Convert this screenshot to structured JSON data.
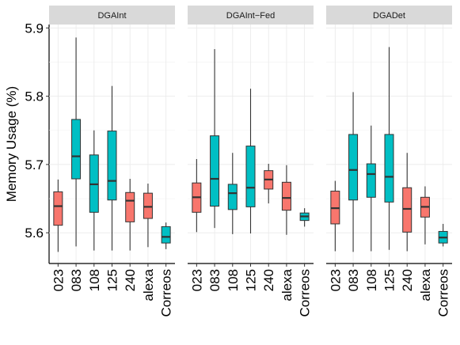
{
  "chart_data": {
    "type": "box",
    "ylabel": "Memory Usage (%)",
    "xlabel": "",
    "ylim": [
      5.555,
      5.905
    ],
    "yticks": [
      5.6,
      5.7,
      5.8,
      5.9
    ],
    "ytick_labels": [
      "5.6",
      "5.7",
      "5.8",
      "5.9"
    ],
    "categories": [
      "023",
      "083",
      "108",
      "125",
      "240",
      "alexa",
      "Correos"
    ],
    "fill_colors": {
      "red": "#F8766D",
      "teal": "#00BFC4"
    },
    "grid": true,
    "legend": "none",
    "panels": [
      {
        "title": "DGAInt",
        "boxes": [
          {
            "category": "023",
            "fill": "red",
            "whisker_low": 5.572,
            "q1": 5.611,
            "median": 5.639,
            "q3": 5.66,
            "whisker_high": 5.678
          },
          {
            "category": "083",
            "fill": "teal",
            "whisker_low": 5.58,
            "q1": 5.679,
            "median": 5.712,
            "q3": 5.766,
            "whisker_high": 5.886
          },
          {
            "category": "108",
            "fill": "teal",
            "whisker_low": 5.574,
            "q1": 5.63,
            "median": 5.671,
            "q3": 5.714,
            "whisker_high": 5.75
          },
          {
            "category": "125",
            "fill": "teal",
            "whisker_low": 5.574,
            "q1": 5.648,
            "median": 5.676,
            "q3": 5.749,
            "whisker_high": 5.815
          },
          {
            "category": "240",
            "fill": "red",
            "whisker_low": 5.574,
            "q1": 5.616,
            "median": 5.647,
            "q3": 5.659,
            "whisker_high": 5.679
          },
          {
            "category": "alexa",
            "fill": "red",
            "whisker_low": 5.579,
            "q1": 5.621,
            "median": 5.638,
            "q3": 5.658,
            "whisker_high": 5.672
          },
          {
            "category": "Correos",
            "fill": "teal",
            "whisker_low": 5.576,
            "q1": 5.585,
            "median": 5.594,
            "q3": 5.609,
            "whisker_high": 5.615
          }
        ]
      },
      {
        "title": "DGAInt−Fed",
        "boxes": [
          {
            "category": "023",
            "fill": "red",
            "whisker_low": 5.601,
            "q1": 5.63,
            "median": 5.652,
            "q3": 5.673,
            "whisker_high": 5.708
          },
          {
            "category": "083",
            "fill": "teal",
            "whisker_low": 5.607,
            "q1": 5.639,
            "median": 5.679,
            "q3": 5.742,
            "whisker_high": 5.869
          },
          {
            "category": "108",
            "fill": "teal",
            "whisker_low": 5.598,
            "q1": 5.634,
            "median": 5.658,
            "q3": 5.671,
            "whisker_high": 5.717
          },
          {
            "category": "125",
            "fill": "teal",
            "whisker_low": 5.599,
            "q1": 5.638,
            "median": 5.666,
            "q3": 5.727,
            "whisker_high": 5.811
          },
          {
            "category": "240",
            "fill": "red",
            "whisker_low": 5.643,
            "q1": 5.664,
            "median": 5.678,
            "q3": 5.691,
            "whisker_high": 5.701
          },
          {
            "category": "alexa",
            "fill": "red",
            "whisker_low": 5.597,
            "q1": 5.633,
            "median": 5.651,
            "q3": 5.674,
            "whisker_high": 5.699
          },
          {
            "category": "Correos",
            "fill": "teal",
            "whisker_low": 5.609,
            "q1": 5.618,
            "median": 5.624,
            "q3": 5.629,
            "whisker_high": 5.636
          }
        ]
      },
      {
        "title": "DGADet",
        "boxes": [
          {
            "category": "023",
            "fill": "red",
            "whisker_low": 5.573,
            "q1": 5.613,
            "median": 5.636,
            "q3": 5.661,
            "whisker_high": 5.676
          },
          {
            "category": "083",
            "fill": "teal",
            "whisker_low": 5.572,
            "q1": 5.648,
            "median": 5.692,
            "q3": 5.744,
            "whisker_high": 5.806
          },
          {
            "category": "108",
            "fill": "teal",
            "whisker_low": 5.573,
            "q1": 5.652,
            "median": 5.686,
            "q3": 5.701,
            "whisker_high": 5.757
          },
          {
            "category": "125",
            "fill": "teal",
            "whisker_low": 5.575,
            "q1": 5.645,
            "median": 5.682,
            "q3": 5.744,
            "whisker_high": 5.872
          },
          {
            "category": "240",
            "fill": "red",
            "whisker_low": 5.573,
            "q1": 5.601,
            "median": 5.635,
            "q3": 5.666,
            "whisker_high": 5.717
          },
          {
            "category": "alexa",
            "fill": "red",
            "whisker_low": 5.583,
            "q1": 5.623,
            "median": 5.638,
            "q3": 5.652,
            "whisker_high": 5.668
          },
          {
            "category": "Correos",
            "fill": "teal",
            "whisker_low": 5.58,
            "q1": 5.585,
            "median": 5.593,
            "q3": 5.602,
            "whisker_high": 5.613
          }
        ]
      }
    ]
  }
}
